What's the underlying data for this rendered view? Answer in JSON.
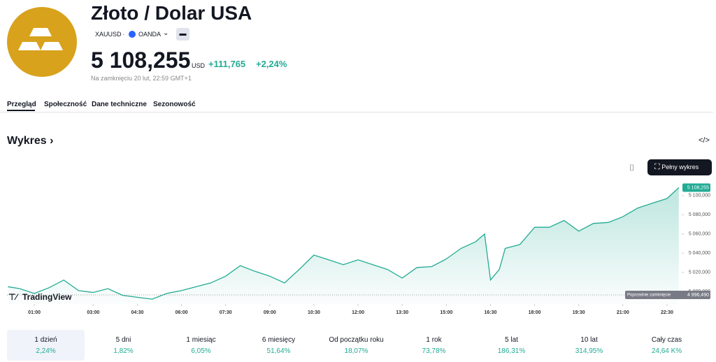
{
  "header": {
    "title": "Złoto / Dolar USA",
    "symbol": "XAUUSD",
    "exchange": "OANDA",
    "price": "5 108,255",
    "currency": "USD",
    "change": "+111,765",
    "change_percent": "+2,24%",
    "status": "Na zamknięciu 20 lut, 22:59 GMT+1"
  },
  "tabs": [
    "Przegląd",
    "Społeczność",
    "Dane techniczne",
    "Sezonowość"
  ],
  "section_title": "Wykres",
  "full_chart_button": "Pełny wykres",
  "chart_data": {
    "type": "line",
    "color": "#22ab94",
    "x": [
      0.1,
      0.5,
      1.0,
      1.5,
      2.0,
      2.5,
      3.0,
      3.5,
      4.0,
      4.5,
      5.0,
      5.5,
      6.0,
      6.5,
      7.0,
      7.5,
      8.0,
      8.5,
      9.0,
      9.5,
      10.0,
      10.5,
      11.0,
      11.5,
      12.0,
      12.5,
      13.0,
      13.5,
      14.0,
      14.5,
      15.0,
      15.5,
      16.0,
      16.3,
      16.5,
      16.8,
      17.0,
      17.5,
      18.0,
      18.5,
      19.0,
      19.5,
      20.0,
      20.5,
      21.0,
      21.5,
      22.0,
      22.5,
      22.9
    ],
    "values": [
      5005,
      5003,
      4998,
      5004,
      5012,
      5001,
      4999,
      5003,
      4996,
      4994,
      4992,
      4998,
      5001,
      5005,
      5009,
      5016,
      5027,
      5021,
      5016,
      5009,
      5023,
      5038,
      5033,
      5028,
      5033,
      5028,
      5023,
      5014,
      5025,
      5026,
      5034,
      5045,
      5052,
      5060,
      5012,
      5023,
      5045,
      5049,
      5067,
      5067,
      5074,
      5063,
      5071,
      5072,
      5078,
      5087,
      5092,
      5097,
      5108.255
    ],
    "xlim": [
      0.07,
      23.0
    ],
    "ylim": [
      4987,
      5113
    ],
    "xticks": [
      {
        "value": 1,
        "label": "01:00"
      },
      {
        "value": 3,
        "label": "03:00"
      },
      {
        "value": 4.5,
        "label": "04:30"
      },
      {
        "value": 6,
        "label": "06:00"
      },
      {
        "value": 7.5,
        "label": "07:30"
      },
      {
        "value": 9,
        "label": "09:00"
      },
      {
        "value": 10.5,
        "label": "10:30"
      },
      {
        "value": 12,
        "label": "12:00"
      },
      {
        "value": 13.5,
        "label": "13:30"
      },
      {
        "value": 15,
        "label": "15:00"
      },
      {
        "value": 16.5,
        "label": "16:30"
      },
      {
        "value": 18,
        "label": "18:00"
      },
      {
        "value": 19.5,
        "label": "19:30"
      },
      {
        "value": 21,
        "label": "21:00"
      },
      {
        "value": 22.5,
        "label": "22:30"
      }
    ],
    "yticks": [
      {
        "value": 5000,
        "label": "5 000,000"
      },
      {
        "value": 5020,
        "label": "5 020,000"
      },
      {
        "value": 5040,
        "label": "5 040,000"
      },
      {
        "value": 5060,
        "label": "5 060,000"
      },
      {
        "value": 5080,
        "label": "5 080,000"
      },
      {
        "value": 5100,
        "label": "5 100,000"
      }
    ],
    "last_value": {
      "value": 5108.255,
      "label": "5 108,255"
    },
    "previous_close": {
      "label": "Poprzednie zamknięcie",
      "value": 4996.49,
      "value_label": "4 996,490"
    },
    "logo": "TradingView"
  },
  "periods": [
    {
      "label": "1 dzień",
      "change": "2,24%"
    },
    {
      "label": "5 dni",
      "change": "1,82%"
    },
    {
      "label": "1 miesiąc",
      "change": "6,05%"
    },
    {
      "label": "6 miesięcy",
      "change": "51,64%"
    },
    {
      "label": "Od początku roku",
      "change": "18,07%"
    },
    {
      "label": "1 rok",
      "change": "73,78%"
    },
    {
      "label": "5 lat",
      "change": "186,31%"
    },
    {
      "label": "10 lat",
      "change": "314,95%"
    },
    {
      "label": "Cały czas",
      "change": "24,64 K%"
    }
  ]
}
